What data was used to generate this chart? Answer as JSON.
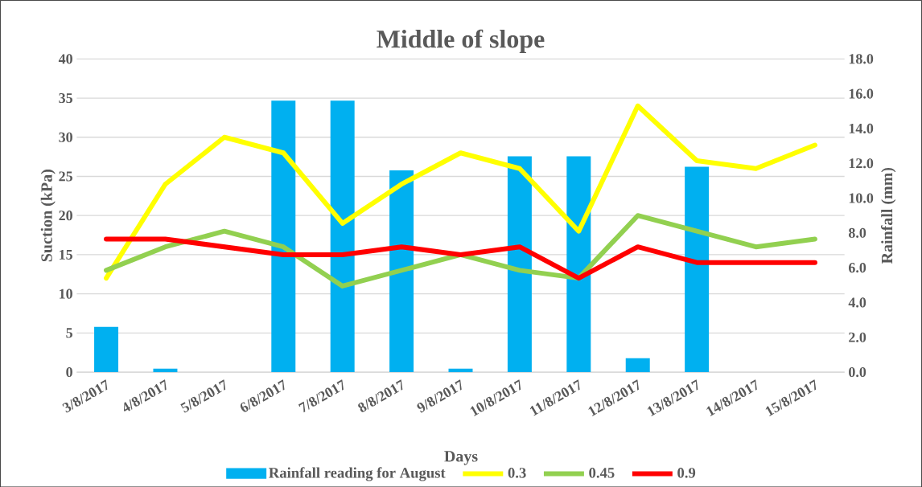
{
  "chart_data": {
    "type": "line",
    "title": "Middle of slope",
    "xlabel": "Days",
    "ylabel": "Suction (kPa)",
    "y2label": "Rainfall (mm)",
    "categories": [
      "3/8/2017",
      "4/8/2017",
      "5/8/2017",
      "6/8/2017",
      "7/8/2017",
      "8/8/2017",
      "9/8/2017",
      "10/8/2017",
      "11/8/2017",
      "12/8/2017",
      "13/8/2017",
      "14/8/2017",
      "15/8/2017"
    ],
    "series": [
      {
        "name": "Rainfall reading for August",
        "type": "bar",
        "axis": "y2",
        "color": "#00b0f0",
        "values": [
          2.6,
          0.2,
          0,
          15.6,
          15.6,
          11.6,
          0.2,
          12.4,
          12.4,
          0.8,
          11.8,
          0,
          0
        ]
      },
      {
        "name": "0.3",
        "color": "#ffff00",
        "values": [
          12,
          24,
          30,
          28,
          19,
          24,
          28,
          26,
          18,
          34,
          27,
          26,
          29
        ]
      },
      {
        "name": "0.45",
        "color": "#92d050",
        "values": [
          13,
          16,
          18,
          16,
          11,
          13,
          15,
          13,
          12,
          20,
          18,
          16,
          17
        ]
      },
      {
        "name": "0.9",
        "color": "#ff0000",
        "values": [
          17,
          17,
          16,
          15,
          15,
          16,
          15,
          16,
          12,
          16,
          14,
          14,
          14
        ]
      }
    ],
    "ylim": [
      0,
      40
    ],
    "yticks": [
      0,
      5,
      10,
      15,
      20,
      25,
      30,
      35,
      40
    ],
    "y2lim": [
      0,
      18
    ],
    "y2ticks": [
      {
        "value": 0,
        "label": "0.0"
      },
      {
        "value": 2,
        "label": "2.0"
      },
      {
        "value": 4,
        "label": "4.0"
      },
      {
        "value": 6,
        "label": "6.0"
      },
      {
        "value": 8,
        "label": "8.0"
      },
      {
        "value": 10,
        "label": "10.0"
      },
      {
        "value": 12,
        "label": "12.0"
      },
      {
        "value": 14,
        "label": "14.0"
      },
      {
        "value": 16,
        "label": "16.0"
      },
      {
        "value": 18,
        "label": "18.0"
      }
    ],
    "grid": "y",
    "legend": "bottom",
    "marker": "none",
    "line_style": "solid"
  }
}
